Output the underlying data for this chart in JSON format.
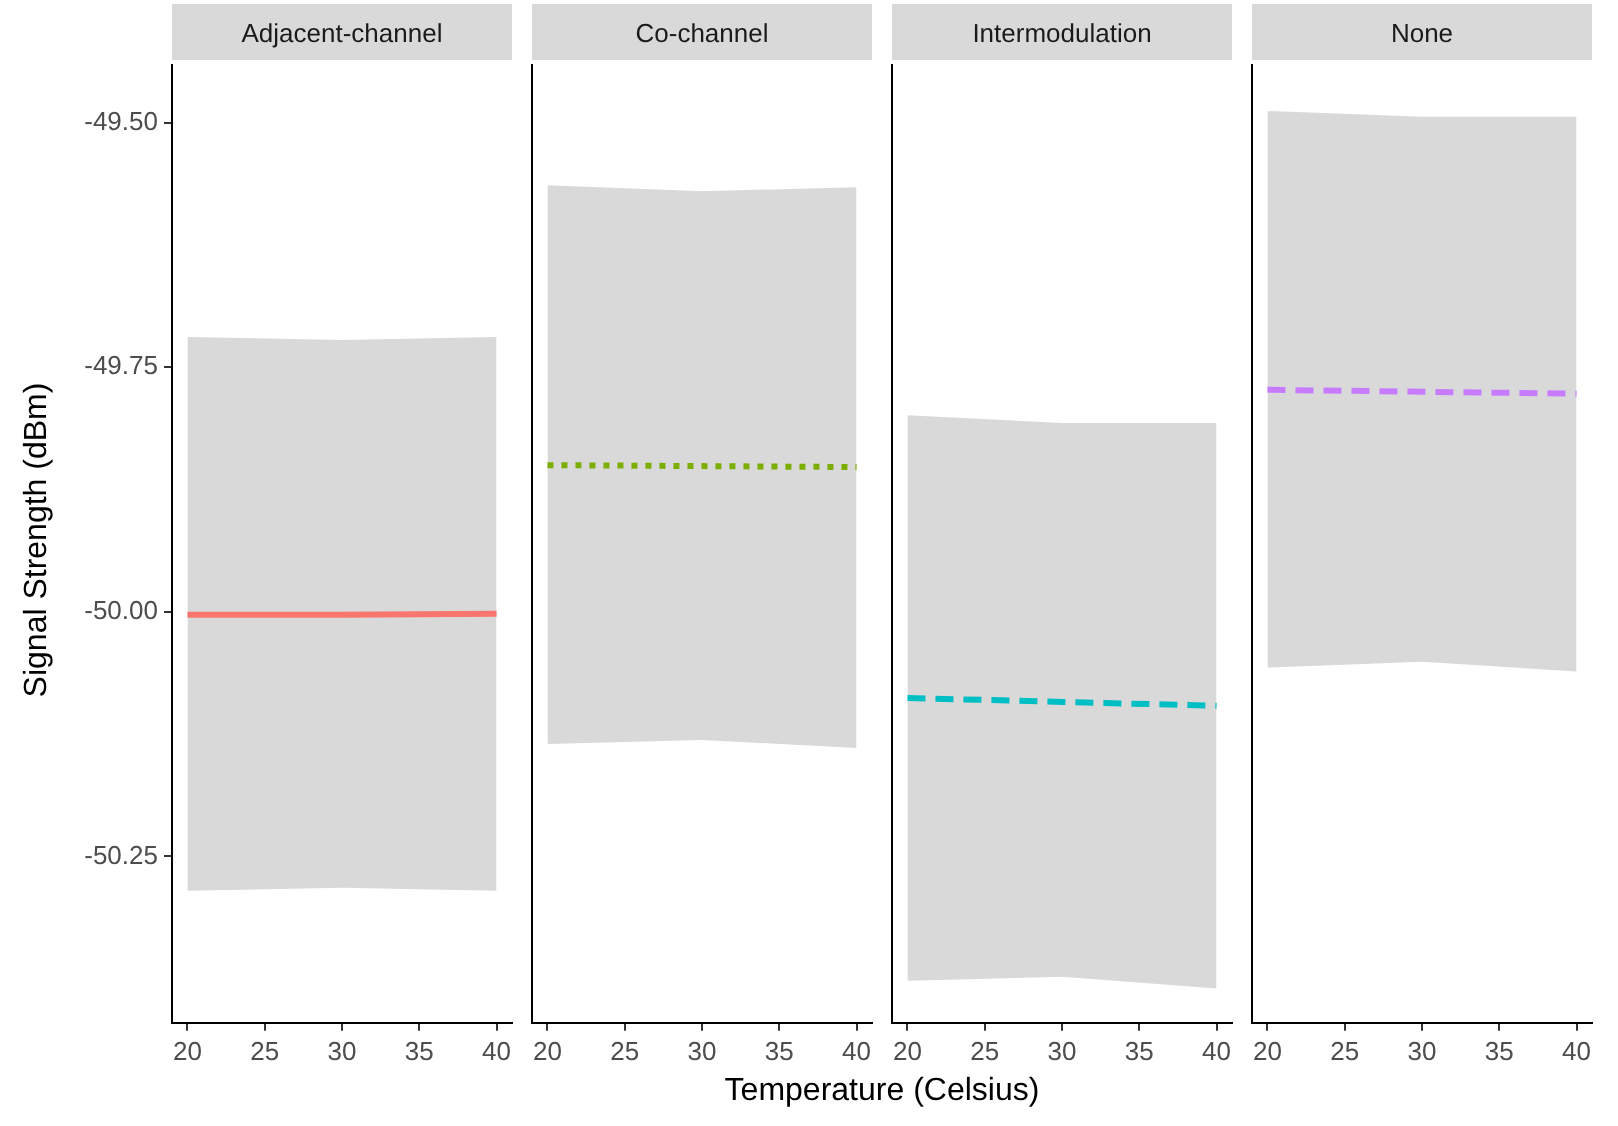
{
  "chart_data": [
    {
      "type": "line",
      "title": "Adjacent-channel",
      "ylabel": "Signal Strength (dBm)",
      "x": [
        20,
        30,
        40
      ],
      "xlim": [
        19,
        41
      ],
      "xticks": [
        20,
        25,
        30,
        35,
        40
      ],
      "ylim": [
        -50.42,
        -49.44
      ],
      "yticks": [
        {
          "value": -49.5,
          "label": "-49.50"
        },
        {
          "value": -49.75,
          "label": "-49.75"
        },
        {
          "value": -50,
          "label": "-50.00"
        },
        {
          "value": -50.25,
          "label": "-50.25"
        }
      ],
      "grid": false,
      "legend": false,
      "marker": "none",
      "series": [
        {
          "color": "#f8766d",
          "line_style": "solid",
          "values": [
            -50.003,
            -50.003,
            -50.002
          ],
          "lower": [
            -50.285,
            -50.282,
            -50.285
          ],
          "upper": [
            -49.719,
            -49.722,
            -49.719
          ]
        }
      ]
    },
    {
      "type": "line",
      "title": "Co-channel",
      "xlabel": "Temperature (Celsius)",
      "x": [
        20,
        30,
        40
      ],
      "xlim": [
        19,
        41
      ],
      "xticks": [
        20,
        25,
        30,
        35,
        40
      ],
      "ylim": [
        -50.42,
        -49.44
      ],
      "tick_labels": "x",
      "grid": false,
      "legend": false,
      "marker": "none",
      "series": [
        {
          "color": "#7cae00",
          "line_style": "dotted",
          "values": [
            -49.85,
            -49.851,
            -49.852
          ],
          "lower": [
            -50.135,
            -50.131,
            -50.139
          ],
          "upper": [
            -49.564,
            -49.57,
            -49.566
          ]
        }
      ]
    },
    {
      "type": "line",
      "title": "Intermodulation",
      "x": [
        20,
        30,
        40
      ],
      "xlim": [
        19,
        41
      ],
      "xticks": [
        20,
        25,
        30,
        35,
        40
      ],
      "ylim": [
        -50.42,
        -49.44
      ],
      "tick_labels": "x",
      "grid": false,
      "legend": false,
      "marker": "none",
      "series": [
        {
          "color": "#00bfc4",
          "line_style": "dashed",
          "values": [
            -50.088,
            -50.092,
            -50.096
          ],
          "lower": [
            -50.377,
            -50.373,
            -50.385
          ],
          "upper": [
            -49.799,
            -49.807,
            -49.807
          ]
        }
      ]
    },
    {
      "type": "line",
      "title": "None",
      "x": [
        20,
        30,
        40
      ],
      "xlim": [
        19,
        41
      ],
      "xticks": [
        20,
        25,
        30,
        35,
        40
      ],
      "ylim": [
        -50.42,
        -49.44
      ],
      "tick_labels": "x",
      "grid": false,
      "legend": false,
      "marker": "none",
      "series": [
        {
          "color": "#c77cff",
          "line_style": "dashed",
          "values": [
            -49.773,
            -49.775,
            -49.777
          ],
          "lower": [
            -50.057,
            -50.051,
            -50.061
          ],
          "upper": [
            -49.488,
            -49.494,
            -49.494
          ]
        }
      ]
    }
  ]
}
